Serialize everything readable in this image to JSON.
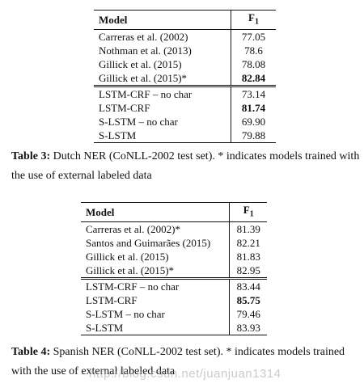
{
  "table3": {
    "header_model": "Model",
    "header_f1": "F",
    "header_f1_sub": "1",
    "group1": [
      {
        "model": "Carreras et al. (2002)",
        "f1": "77.05",
        "bold": false
      },
      {
        "model": "Nothman et al. (2013)",
        "f1": "78.6",
        "bold": false
      },
      {
        "model": "Gillick et al. (2015)",
        "f1": "78.08",
        "bold": false
      },
      {
        "model": "Gillick et al. (2015)*",
        "f1": "82.84",
        "bold": true
      }
    ],
    "group2": [
      {
        "model": "LSTM-CRF – no char",
        "f1": "73.14",
        "bold": false
      },
      {
        "model": "LSTM-CRF",
        "f1": "81.74",
        "bold": true
      },
      {
        "model": "S-LSTM – no char",
        "f1": "69.90",
        "bold": false
      },
      {
        "model": "S-LSTM",
        "f1": "79.88",
        "bold": false
      }
    ],
    "caption_label": "Table 3:",
    "caption_text": " Dutch NER (CoNLL-2002 test set). * indicates models trained with the use of external labeled data"
  },
  "table4": {
    "header_model": "Model",
    "header_f1": "F",
    "header_f1_sub": "1",
    "group1": [
      {
        "model": "Carreras et al. (2002)*",
        "f1": "81.39",
        "bold": false
      },
      {
        "model": "Santos and Guimarães (2015)",
        "f1": "82.21",
        "bold": false
      },
      {
        "model": "Gillick et al. (2015)",
        "f1": "81.83",
        "bold": false
      },
      {
        "model": "Gillick et al. (2015)*",
        "f1": "82.95",
        "bold": false
      }
    ],
    "group2": [
      {
        "model": "LSTM-CRF – no char",
        "f1": "83.44",
        "bold": false
      },
      {
        "model": "LSTM-CRF",
        "f1": "85.75",
        "bold": true
      },
      {
        "model": "S-LSTM – no char",
        "f1": "79.46",
        "bold": false
      },
      {
        "model": "S-LSTM",
        "f1": "83.93",
        "bold": false
      }
    ],
    "caption_label": "Table 4:",
    "caption_text": " Spanish NER (CoNLL-2002 test set). * indicates models trained with the use of external labeled data"
  },
  "watermark": "http://blog.csdn.net/juanjuan1314"
}
